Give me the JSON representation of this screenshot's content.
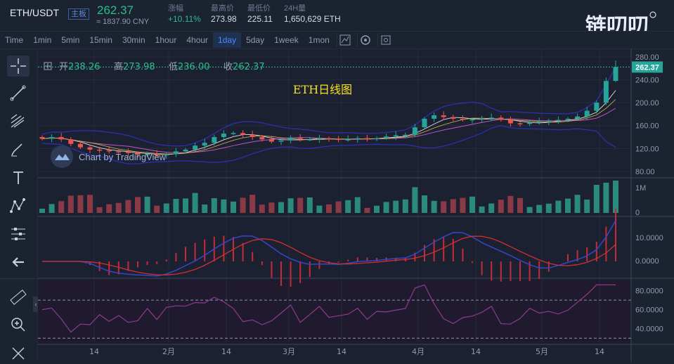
{
  "header": {
    "pair": "ETH/USDT",
    "badge": "主板",
    "last_price": "262.37",
    "cny_price": "≈ 1837.90 CNY",
    "change_label": "涨幅",
    "change_value": "+10.11%",
    "high_label": "最高价",
    "high_value": "273.98",
    "low_label": "最低价",
    "low_value": "225.11",
    "vol_label": "24H量",
    "vol_value": "1,650,629 ETH",
    "watermark_text": "链叨叨"
  },
  "toolbar": {
    "timeframes": [
      "Time",
      "1min",
      "5min",
      "15min",
      "30min",
      "1hour",
      "4hour",
      "1day",
      "5day",
      "1week",
      "1mon"
    ],
    "active": "1day",
    "icons": [
      "indicator-icon",
      "settings-icon",
      "screenshot-icon"
    ]
  },
  "sidebar": {
    "tools": [
      "crosshair-icon",
      "trendline-icon",
      "fib-icon",
      "brush-icon",
      "text-icon",
      "pattern-icon",
      "measure-icon",
      "arrow-left-icon",
      "ruler-icon",
      "zoom-in-icon",
      "eye-off-icon"
    ]
  },
  "ohlc": {
    "open_label": "开",
    "open": "238.26",
    "high_label": "高",
    "high": "273.98",
    "low_label": "低",
    "low": "236.00",
    "close_label": "收",
    "close": "262.37"
  },
  "chart_title": "ETH日线图",
  "tv_attribution": "Chart by TradingView",
  "colors": {
    "up": "#26a69a",
    "down": "#ef5350",
    "title": "#f7e11e",
    "price_tag": "#26a69a",
    "macd_signal": "#d32f2f",
    "macd_line": "#3347c9",
    "rsi": "#8e3b8f",
    "boll": "#2d2fb0",
    "ma_white": "#e0e0e0"
  },
  "chart_data": {
    "type": "candlestick",
    "x_labels": [
      "14",
      "2月",
      "14",
      "3月",
      "14",
      "4月",
      "14",
      "5月",
      "14"
    ],
    "close_path": [
      137,
      140,
      136,
      128,
      122,
      118,
      117,
      115,
      114,
      112,
      109,
      110,
      108,
      110,
      115,
      118,
      125,
      130,
      140,
      146,
      147,
      144,
      140,
      136,
      132,
      134,
      138,
      136,
      136,
      138,
      137,
      135,
      136,
      138,
      137,
      138,
      141,
      143,
      144,
      157,
      172,
      178,
      175,
      172,
      170,
      171,
      172,
      174,
      170,
      164,
      163,
      165,
      167,
      168,
      170,
      172,
      176,
      186,
      200,
      238,
      262.37
    ],
    "last_price": 262.37,
    "price_axis": {
      "range": [
        70,
        285
      ],
      "ticks": [
        80,
        120,
        160,
        200,
        240,
        280
      ]
    },
    "volume_axis": {
      "ticks": [
        "1M",
        "0"
      ]
    },
    "macd_axis": {
      "ticks": [
        "10.0000",
        "0.0000"
      ]
    },
    "rsi_axis": {
      "range": [
        25,
        90
      ],
      "ticks": [
        "80.0000",
        "60.0000",
        "40.0000"
      ]
    }
  }
}
